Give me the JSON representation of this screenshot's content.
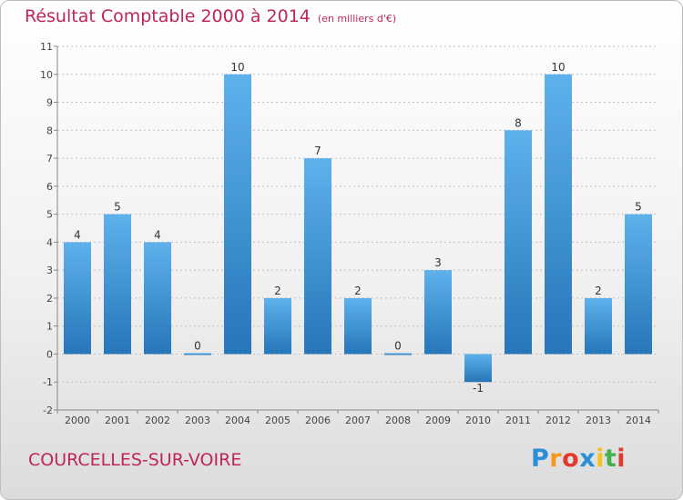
{
  "title": "Résultat Comptable 2000 à 2014",
  "subtitle": "(en milliers d'€)",
  "commune": "COURCELLES-SUR-VOIRE",
  "logo": {
    "letters": [
      "P",
      "r",
      "o",
      "x",
      "i",
      "t",
      "i"
    ],
    "colors": [
      "#2a8fd8",
      "#f29a1f",
      "#e23a2f",
      "#2a8fd8",
      "#f2c21f",
      "#46b04a",
      "#e23a2f"
    ]
  },
  "colors": {
    "title": "#c0245c",
    "bar_light": "#5fb1ec",
    "bar_dark": "#2676b8",
    "grid": "#bfbfbf"
  },
  "chart_data": {
    "type": "bar",
    "title": "Résultat Comptable 2000 à 2014",
    "subtitle": "(en milliers d'€)",
    "categories": [
      "2000",
      "2001",
      "2002",
      "2003",
      "2004",
      "2005",
      "2006",
      "2007",
      "2008",
      "2009",
      "2010",
      "2011",
      "2012",
      "2013",
      "2014"
    ],
    "values": [
      4,
      5,
      4,
      0,
      10,
      2,
      7,
      2,
      0,
      3,
      -1,
      8,
      10,
      2,
      5
    ],
    "ylim": [
      -2,
      11
    ],
    "yticks": [
      -2,
      -1,
      0,
      1,
      2,
      3,
      4,
      5,
      6,
      7,
      8,
      9,
      10,
      11
    ],
    "ytick_labels": [
      "-2",
      "-1",
      "0",
      "1",
      "2",
      "3",
      "4",
      "5",
      "6",
      "7",
      "8",
      "9",
      "10",
      "11"
    ],
    "grid": "horizontal dashed"
  }
}
